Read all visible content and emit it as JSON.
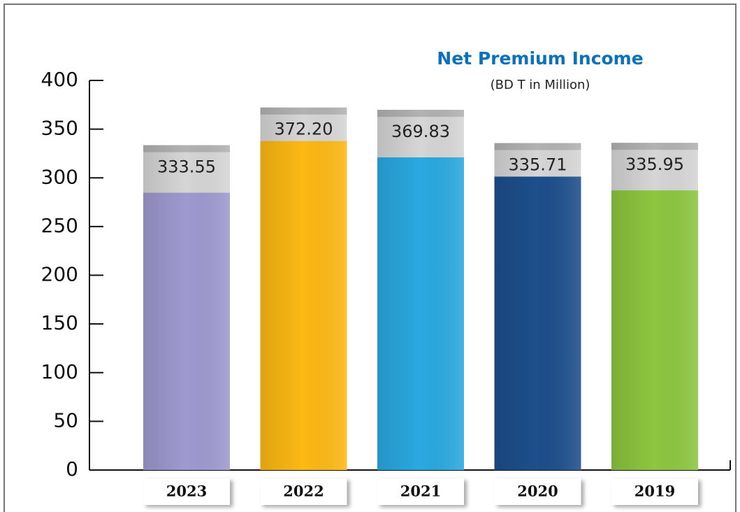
{
  "chart_data": {
    "type": "bar",
    "title": "Net Premium Income",
    "subtitle": "(BD T in Million)",
    "categories": [
      "2023",
      "2022",
      "2021",
      "2020",
      "2019"
    ],
    "values": [
      333.55,
      372.2,
      369.83,
      335.71,
      335.95
    ],
    "value_labels": [
      "333.55",
      "372.20",
      "369.83",
      "335.71",
      "335.95"
    ],
    "colors": [
      "#9e9ad0",
      "#fdb913",
      "#2aa9e0",
      "#1d4f8c",
      "#8dc63f"
    ],
    "ylim": [
      0,
      400
    ],
    "yticks": [
      0,
      50,
      100,
      150,
      200,
      250,
      300,
      350,
      400
    ]
  }
}
